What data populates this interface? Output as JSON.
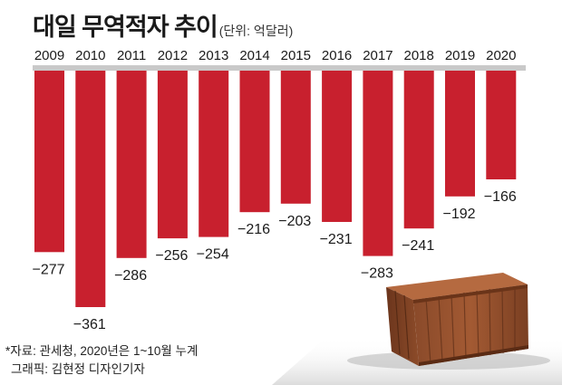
{
  "title": "대일 무역적자 추이",
  "unit_note": "(단위: 억달러)",
  "source_note": "*자료: 관세청, 2020년은 1~10월 누계",
  "credit": "그래픽: 김현정 디자인기자",
  "colors": {
    "bar": "#c8202e",
    "baseline": "#c9c9c9",
    "text": "#1a1a1a"
  },
  "decoration": {
    "icon": "shipping-container-icon"
  },
  "chart_data": {
    "type": "bar",
    "orientation": "vertical-negative",
    "categories": [
      "2009",
      "2010",
      "2011",
      "2012",
      "2013",
      "2014",
      "2015",
      "2016",
      "2017",
      "2018",
      "2019",
      "2020"
    ],
    "values": [
      -277,
      -361,
      -286,
      -256,
      -254,
      -216,
      -203,
      -231,
      -283,
      -241,
      -192,
      -166
    ],
    "value_labels": [
      "−277",
      "−361",
      "−286",
      "−256",
      "−254",
      "−216",
      "−203",
      "−231",
      "−283",
      "−241",
      "−192",
      "−166"
    ],
    "ylim": [
      -361,
      0
    ],
    "grid": false,
    "legend": "none"
  }
}
